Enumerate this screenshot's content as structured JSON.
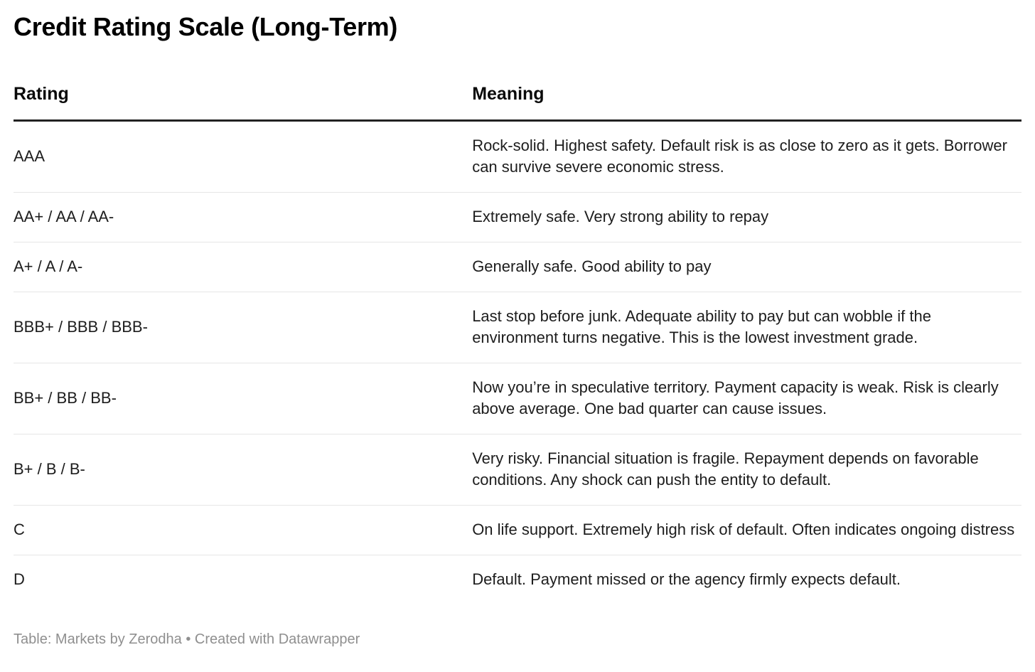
{
  "chart_data": {
    "type": "table",
    "title": "Credit Rating Scale (Long-Term)",
    "columns": [
      "Rating",
      "Meaning"
    ],
    "rows": [
      [
        "AAA",
        "Rock-solid. Highest safety. Default risk is as close to zero as it gets. Borrower can survive severe economic stress."
      ],
      [
        "AA+ / AA / AA-",
        "Extremely safe. Very strong ability to repay"
      ],
      [
        "A+ / A / A-",
        "Generally safe. Good ability to pay"
      ],
      [
        "BBB+ / BBB / BBB-",
        "Last stop before junk. Adequate ability to pay but can wobble if the environment turns negative. This is the lowest investment grade."
      ],
      [
        "BB+ / BB / BB-",
        "Now you’re in speculative territory. Payment capacity is weak. Risk is clearly above average. One bad quarter can cause issues."
      ],
      [
        "B+ / B / B-",
        "Very risky. Financial situation is fragile. Repayment depends on favorable conditions. Any shock can push the entity to default."
      ],
      [
        "C",
        "On life support. Extremely high risk of default. Often indicates ongoing distress"
      ],
      [
        "D",
        "Default. Payment missed or the agency firmly expects default."
      ]
    ],
    "layout_hints": {
      "header_rule": "3px solid dark line under column headers",
      "row_dividers": "1px light gray between rows, none after last row",
      "grid": "horizontal only"
    }
  },
  "footer": {
    "text": "Table: Markets by Zerodha • Created with Datawrapper"
  },
  "colors": {
    "background": "#ffffff",
    "title_text": "#000000",
    "header_text": "#0a0a0a",
    "body_text": "#1d1d1d",
    "header_rule": "#222222",
    "row_divider": "#e6e6e6",
    "footer_text": "#8f8f8f"
  }
}
